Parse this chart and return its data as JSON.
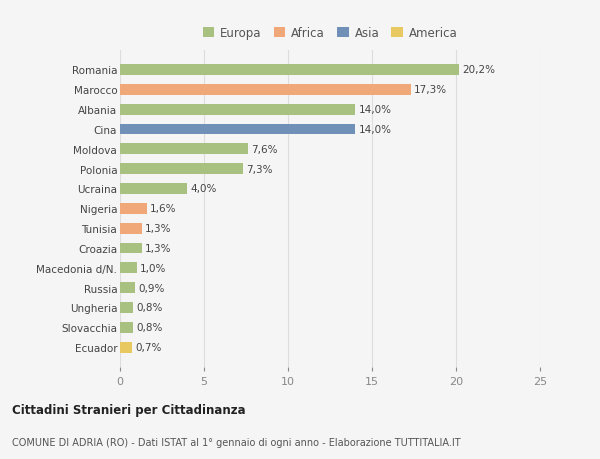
{
  "countries": [
    "Romania",
    "Marocco",
    "Albania",
    "Cina",
    "Moldova",
    "Polonia",
    "Ucraina",
    "Nigeria",
    "Tunisia",
    "Croazia",
    "Macedonia d/N.",
    "Russia",
    "Ungheria",
    "Slovacchia",
    "Ecuador"
  ],
  "values": [
    20.2,
    17.3,
    14.0,
    14.0,
    7.6,
    7.3,
    4.0,
    1.6,
    1.3,
    1.3,
    1.0,
    0.9,
    0.8,
    0.8,
    0.7
  ],
  "labels": [
    "20,2%",
    "17,3%",
    "14,0%",
    "14,0%",
    "7,6%",
    "7,3%",
    "4,0%",
    "1,6%",
    "1,3%",
    "1,3%",
    "1,0%",
    "0,9%",
    "0,8%",
    "0,8%",
    "0,7%"
  ],
  "colors": [
    "#a8c080",
    "#f0a878",
    "#a8c080",
    "#7090b8",
    "#a8c080",
    "#a8c080",
    "#a8c080",
    "#f0a878",
    "#f0a878",
    "#a8c080",
    "#a8c080",
    "#a8c080",
    "#a8c080",
    "#a8c080",
    "#e8c860"
  ],
  "legend_labels": [
    "Europa",
    "Africa",
    "Asia",
    "America"
  ],
  "legend_colors": [
    "#a8c080",
    "#f0a878",
    "#7090b8",
    "#e8c860"
  ],
  "xlim": [
    0,
    25
  ],
  "xticks": [
    0,
    5,
    10,
    15,
    20,
    25
  ],
  "title": "Cittadini Stranieri per Cittadinanza",
  "subtitle": "COMUNE DI ADRIA (RO) - Dati ISTAT al 1° gennaio di ogni anno - Elaborazione TUTTITALIA.IT",
  "bg_color": "#f5f5f5",
  "bar_height": 0.55
}
